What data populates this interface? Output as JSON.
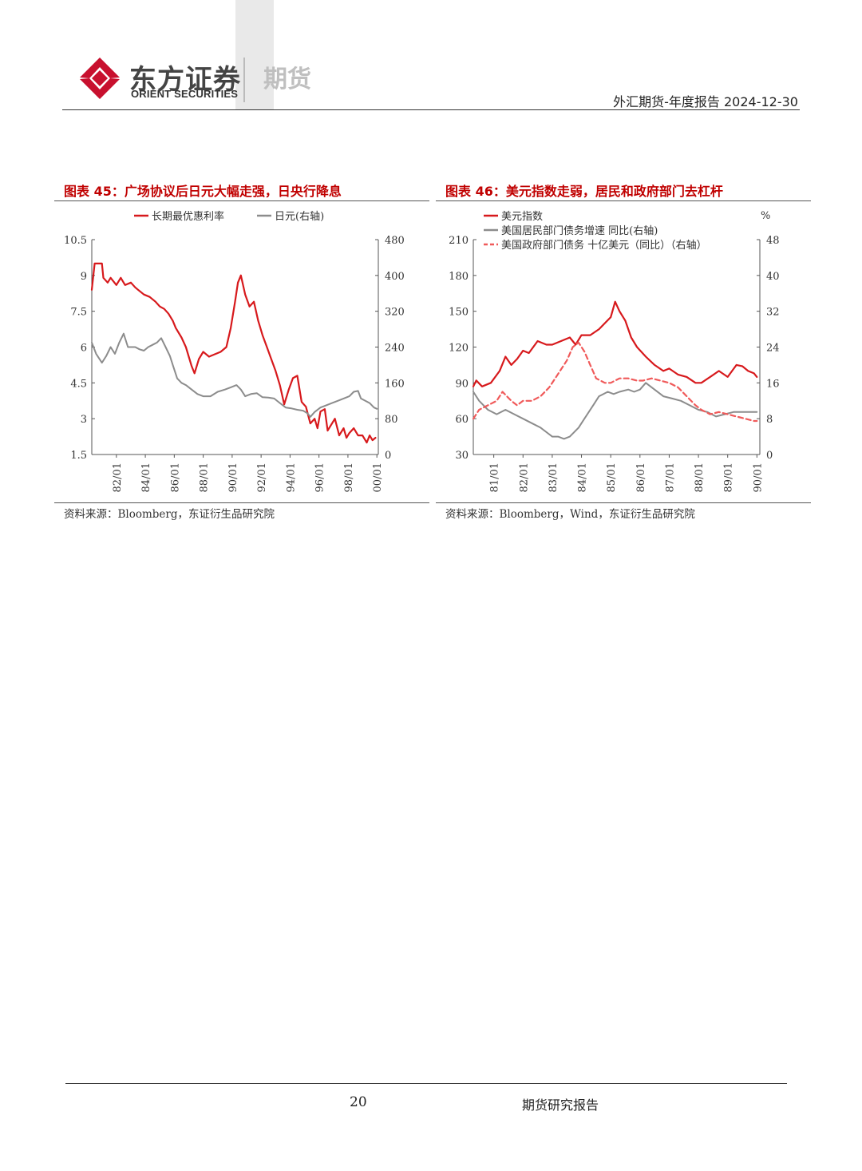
{
  "header": {
    "brand_cn": "东方证券",
    "brand_en": "ORIENT SECURITIES",
    "division": "期货",
    "report_info": "外汇期货-年度报告 2024-12-30"
  },
  "colors": {
    "red": "#c00000",
    "line_red": "#d7191c",
    "grey": "#8c8c8c",
    "dashed_red": "#f05a5a"
  },
  "chart_data": [
    {
      "type": "line",
      "title": "图表 45：广场协议后日元大幅走强，日央行降息",
      "source": "资料来源：Bloomberg，东证衍生品研究院",
      "x_ticks": [
        "82/01",
        "84/01",
        "86/01",
        "88/01",
        "90/01",
        "92/01",
        "94/01",
        "96/01",
        "98/01",
        "00/01"
      ],
      "xlim": [
        1980.3,
        2000.1
      ],
      "y_left": {
        "ticks": [
          "10.5",
          "9",
          "7.5",
          "6",
          "4.5",
          "3",
          "1.5"
        ],
        "ylim": [
          1.5,
          10.5
        ]
      },
      "y_right": {
        "ticks": [
          "480",
          "400",
          "320",
          "240",
          "160",
          "80",
          "0"
        ],
        "ylim": [
          0,
          480
        ]
      },
      "series": [
        {
          "name": "长期最优惠利率",
          "axis": "left",
          "style": "solid",
          "color": "#d7191c",
          "x": [
            1980.3,
            1980.5,
            1981.0,
            1981.1,
            1981.4,
            1981.6,
            1982.0,
            1982.3,
            1982.6,
            1983.0,
            1983.3,
            1983.5,
            1983.9,
            1984.3,
            1984.7,
            1985.0,
            1985.3,
            1985.6,
            1985.9,
            1986.1,
            1986.5,
            1986.8,
            1987.0,
            1987.2,
            1987.4,
            1987.7,
            1988.0,
            1988.4,
            1988.8,
            1989.2,
            1989.6,
            1989.9,
            1990.2,
            1990.4,
            1990.6,
            1990.9,
            1991.2,
            1991.5,
            1991.8,
            1992.1,
            1992.4,
            1992.7,
            1993.0,
            1993.3,
            1993.6,
            1993.9,
            1994.2,
            1994.5,
            1994.8,
            1995.1,
            1995.4,
            1995.7,
            1995.9,
            1996.1,
            1996.4,
            1996.6,
            1996.9,
            1997.1,
            1997.4,
            1997.7,
            1997.9,
            1998.1,
            1998.4,
            1998.7,
            1999.0,
            1999.3,
            1999.5,
            1999.7,
            1999.9
          ],
          "y": [
            8.4,
            9.5,
            9.5,
            8.9,
            8.7,
            8.9,
            8.6,
            8.9,
            8.6,
            8.7,
            8.5,
            8.4,
            8.2,
            8.1,
            7.9,
            7.7,
            7.6,
            7.4,
            7.1,
            6.8,
            6.4,
            6.0,
            5.6,
            5.2,
            4.9,
            5.5,
            5.8,
            5.6,
            5.7,
            5.8,
            6.0,
            6.8,
            7.9,
            8.7,
            9.0,
            8.2,
            7.7,
            7.9,
            7.1,
            6.5,
            6.0,
            5.5,
            5.0,
            4.4,
            3.6,
            4.2,
            4.7,
            4.8,
            3.7,
            3.5,
            2.8,
            3.0,
            2.6,
            3.3,
            3.4,
            2.5,
            2.8,
            3.0,
            2.3,
            2.6,
            2.2,
            2.4,
            2.6,
            2.3,
            2.3,
            2.0,
            2.3,
            2.1,
            2.2
          ]
        },
        {
          "name": "日元(右轴)",
          "axis": "right",
          "style": "solid",
          "color": "#8c8c8c",
          "x": [
            1980.3,
            1980.6,
            1981.0,
            1981.3,
            1981.6,
            1981.9,
            1982.2,
            1982.5,
            1982.8,
            1983.0,
            1983.3,
            1983.6,
            1983.9,
            1984.2,
            1984.5,
            1984.8,
            1985.1,
            1985.4,
            1985.7,
            1985.9,
            1986.2,
            1986.5,
            1986.8,
            1987.2,
            1987.6,
            1988.0,
            1988.5,
            1989.0,
            1989.5,
            1989.9,
            1990.3,
            1990.6,
            1990.9,
            1991.3,
            1991.7,
            1992.1,
            1992.5,
            1992.9,
            1993.3,
            1993.7,
            1994.1,
            1994.5,
            1994.9,
            1995.2,
            1995.4,
            1995.7,
            1996.1,
            1996.5,
            1996.9,
            1997.3,
            1997.7,
            1998.1,
            1998.4,
            1998.7,
            1998.9,
            1999.2,
            1999.5,
            1999.8,
            2000.0
          ],
          "y": [
            250,
            225,
            205,
            220,
            240,
            225,
            250,
            270,
            240,
            240,
            240,
            235,
            232,
            240,
            245,
            250,
            260,
            240,
            220,
            200,
            170,
            160,
            155,
            145,
            135,
            130,
            130,
            140,
            145,
            150,
            155,
            145,
            130,
            135,
            137,
            128,
            127,
            125,
            115,
            105,
            103,
            100,
            98,
            92,
            84,
            95,
            105,
            110,
            115,
            120,
            125,
            130,
            140,
            142,
            125,
            120,
            115,
            105,
            102
          ]
        }
      ]
    },
    {
      "type": "line",
      "title": "图表 46：美元指数走弱，居民和政府部门去杠杆",
      "source": "资料来源：Bloomberg，Wind，东证衍生品研究院",
      "x_ticks": [
        "81/01",
        "82/01",
        "83/01",
        "84/01",
        "85/01",
        "86/01",
        "87/01",
        "88/01",
        "89/01",
        "90/01"
      ],
      "xlim": [
        1980.3,
        1990.1
      ],
      "y_left": {
        "ticks": [
          "210",
          "180",
          "150",
          "120",
          "90",
          "60",
          "30"
        ],
        "ylim": [
          30,
          210
        ]
      },
      "y_right": {
        "unit": "%",
        "ticks": [
          "48",
          "40",
          "32",
          "24",
          "16",
          "8",
          "0"
        ],
        "ylim": [
          0,
          48
        ]
      },
      "series": [
        {
          "name": "美元指数",
          "axis": "left",
          "style": "solid",
          "color": "#d7191c",
          "x": [
            1980.3,
            1980.4,
            1980.6,
            1980.9,
            1981.2,
            1981.4,
            1981.6,
            1981.8,
            1982.0,
            1982.2,
            1982.5,
            1982.8,
            1983.0,
            1983.3,
            1983.6,
            1983.8,
            1984.0,
            1984.3,
            1984.6,
            1984.8,
            1985.0,
            1985.15,
            1985.3,
            1985.5,
            1985.7,
            1985.9,
            1986.2,
            1986.5,
            1986.8,
            1987.0,
            1987.3,
            1987.6,
            1987.9,
            1988.1,
            1988.4,
            1988.7,
            1989.0,
            1989.3,
            1989.5,
            1989.7,
            1989.9,
            1990.0
          ],
          "y": [
            87,
            92,
            87,
            90,
            100,
            112,
            105,
            110,
            117,
            115,
            125,
            122,
            122,
            125,
            128,
            122,
            130,
            130,
            135,
            140,
            145,
            158,
            150,
            142,
            128,
            120,
            112,
            105,
            100,
            102,
            97,
            95,
            90,
            90,
            95,
            100,
            95,
            105,
            104,
            100,
            98,
            95
          ]
        },
        {
          "name": "美国居民部门债务增速 同比(右轴)",
          "axis": "right",
          "style": "solid",
          "color": "#8c8c8c",
          "x": [
            1980.3,
            1980.5,
            1980.8,
            1981.1,
            1981.4,
            1981.7,
            1982.0,
            1982.3,
            1982.6,
            1982.8,
            1983.0,
            1983.2,
            1983.4,
            1983.6,
            1983.9,
            1984.1,
            1984.4,
            1984.6,
            1984.9,
            1985.1,
            1985.3,
            1985.6,
            1985.8,
            1986.0,
            1986.2,
            1986.5,
            1986.8,
            1987.1,
            1987.4,
            1987.7,
            1988.0,
            1988.3,
            1988.6,
            1988.9,
            1989.2,
            1989.5,
            1989.8,
            1990.0
          ],
          "y": [
            14,
            12,
            10,
            9,
            10,
            9,
            8,
            7,
            6,
            5,
            4,
            4,
            3.5,
            4,
            6,
            8,
            11,
            13,
            14,
            13.5,
            14,
            14.5,
            14,
            14.5,
            16,
            14.5,
            13,
            12.5,
            12,
            11,
            10,
            9.5,
            8.5,
            9,
            9.5,
            9.5,
            9.5,
            9.5
          ]
        },
        {
          "name": "美国政府部门债务 十亿美元（同比）（右轴）",
          "axis": "right",
          "style": "dashed",
          "color": "#f05a5a",
          "x": [
            1980.3,
            1980.5,
            1980.8,
            1981.1,
            1981.3,
            1981.6,
            1981.8,
            1982.0,
            1982.3,
            1982.6,
            1982.9,
            1983.1,
            1983.3,
            1983.5,
            1983.7,
            1983.9,
            1984.1,
            1984.3,
            1984.5,
            1984.8,
            1985.0,
            1985.3,
            1985.6,
            1985.9,
            1986.1,
            1986.4,
            1986.7,
            1987.0,
            1987.3,
            1987.6,
            1987.9,
            1988.1,
            1988.4,
            1988.7,
            1989.0,
            1989.3,
            1989.6,
            1989.9,
            1990.0
          ],
          "y": [
            8,
            10,
            11,
            12,
            14,
            12,
            11,
            12,
            12,
            13,
            15,
            17,
            19,
            21,
            24,
            25,
            23,
            20,
            17,
            16,
            16,
            17,
            17,
            16.5,
            16.5,
            17,
            16.5,
            16,
            15,
            13,
            11,
            10,
            9,
            9.5,
            9,
            8.5,
            8,
            7.5,
            7.5
          ]
        }
      ]
    }
  ]
}
